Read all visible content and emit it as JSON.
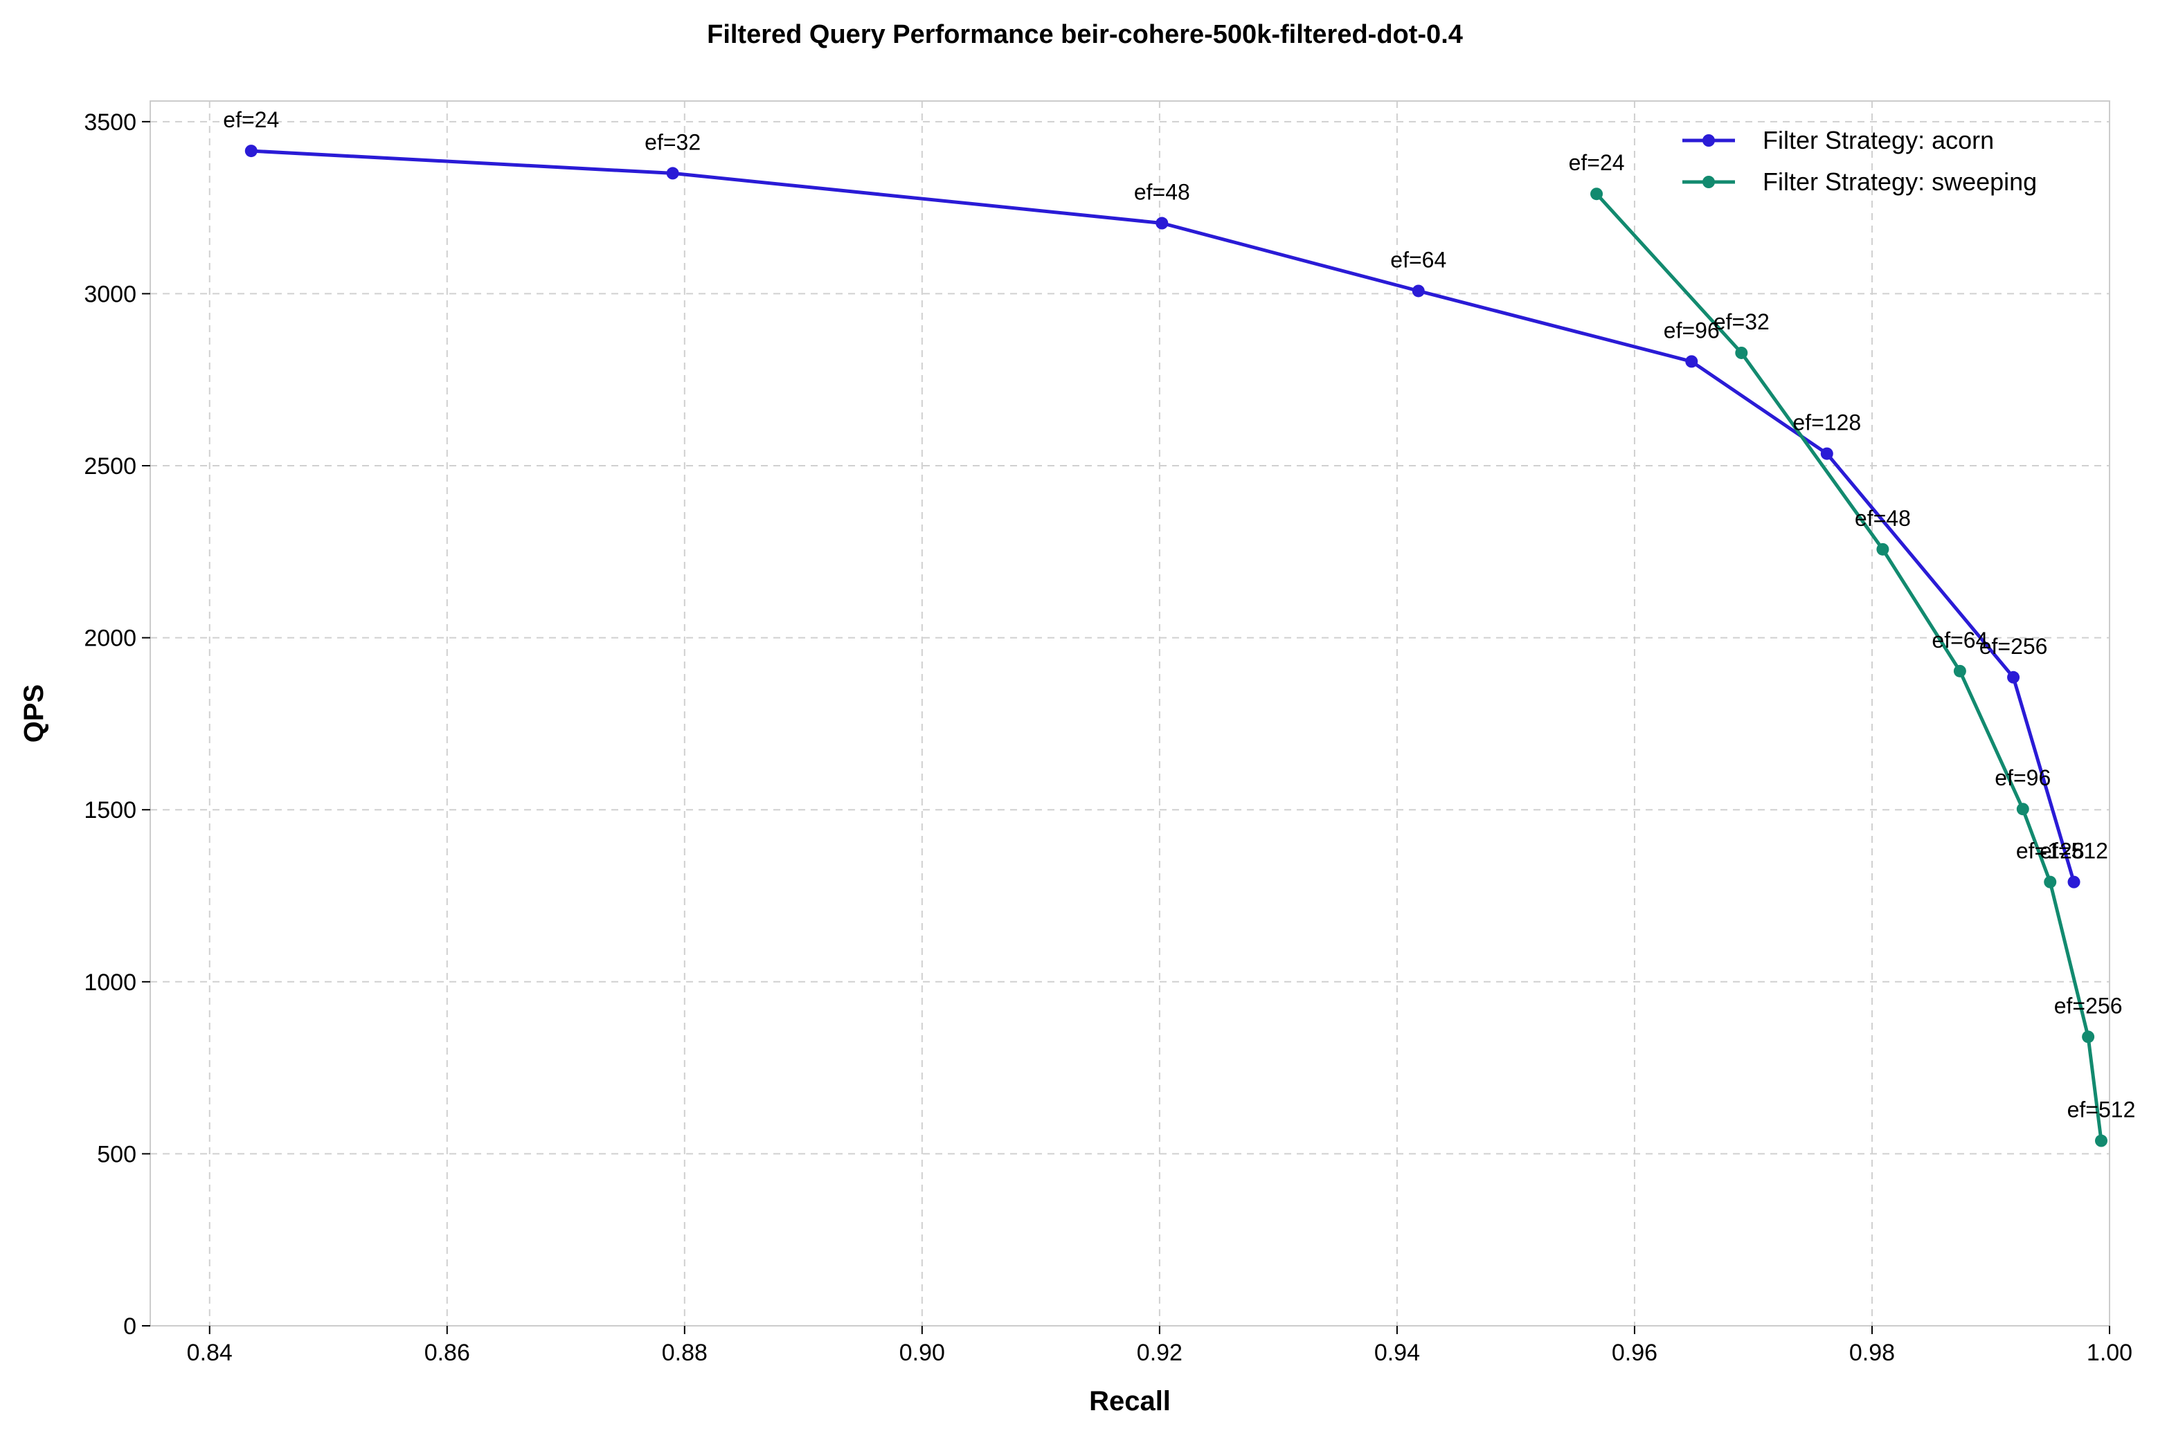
{
  "chart_data": {
    "type": "line",
    "title": "Filtered Query Performance beir-cohere-500k-filtered-dot-0.4",
    "xlabel": "Recall",
    "ylabel": "QPS",
    "xlim": [
      0.835,
      1.0
    ],
    "ylim": [
      0,
      3560
    ],
    "xticks": [
      0.84,
      0.86,
      0.88,
      0.9,
      0.92,
      0.94,
      0.96,
      0.98,
      1.0
    ],
    "xtick_labels": [
      "0.84",
      "0.86",
      "0.88",
      "0.90",
      "0.92",
      "0.94",
      "0.96",
      "0.98",
      "1.00"
    ],
    "yticks": [
      0,
      500,
      1000,
      1500,
      2000,
      2500,
      3000,
      3500
    ],
    "ytick_labels": [
      "0",
      "500",
      "1000",
      "1500",
      "2000",
      "2500",
      "3000",
      "3500"
    ],
    "grid": true,
    "legend_position": "top-right",
    "series": [
      {
        "name": "Filter Strategy: acorn",
        "color": "#2a1bd6",
        "points": [
          {
            "x": 0.8435,
            "y": 3415,
            "label": "ef=24"
          },
          {
            "x": 0.879,
            "y": 3350,
            "label": "ef=32"
          },
          {
            "x": 0.9202,
            "y": 3205,
            "label": "ef=48"
          },
          {
            "x": 0.9418,
            "y": 3008,
            "label": "ef=64"
          },
          {
            "x": 0.9648,
            "y": 2803,
            "label": "ef=96"
          },
          {
            "x": 0.9762,
            "y": 2535,
            "label": "ef=128"
          },
          {
            "x": 0.9919,
            "y": 1885,
            "label": "ef=256"
          },
          {
            "x": 0.997,
            "y": 1290,
            "label": "ef=512"
          }
        ]
      },
      {
        "name": "Filter Strategy: sweeping",
        "color": "#128a6f",
        "points": [
          {
            "x": 0.9568,
            "y": 3290,
            "label": "ef=24"
          },
          {
            "x": 0.969,
            "y": 2828,
            "label": "ef=32"
          },
          {
            "x": 0.9809,
            "y": 2257,
            "label": "ef=48"
          },
          {
            "x": 0.9874,
            "y": 1903,
            "label": "ef=64"
          },
          {
            "x": 0.9927,
            "y": 1502,
            "label": "ef=96"
          },
          {
            "x": 0.995,
            "y": 1290,
            "label": "ef=128"
          },
          {
            "x": 0.9982,
            "y": 840,
            "label": "ef=256"
          },
          {
            "x": 0.9993,
            "y": 538,
            "label": "ef=512"
          }
        ]
      }
    ]
  }
}
